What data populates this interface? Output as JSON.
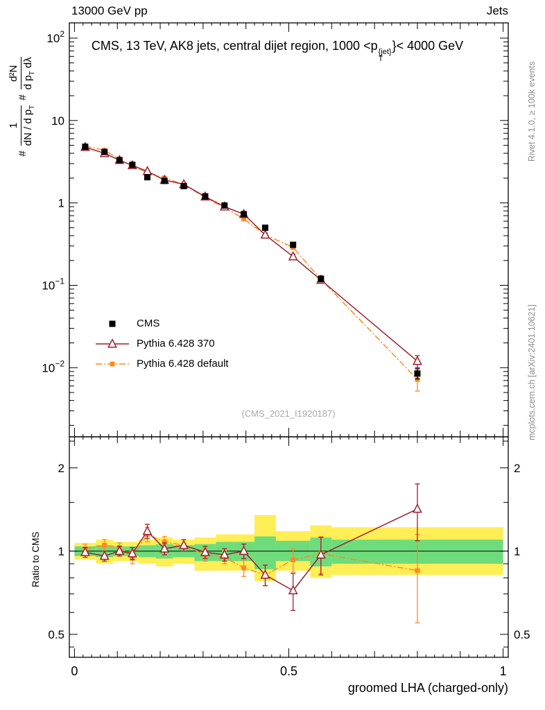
{
  "header": {
    "left": "13000 GeV pp",
    "right": "Jets"
  },
  "title": {
    "prefix": "CMS, 13 TeV, AK8 jets, central dijet region, 1000 <p",
    "sup": "{jet}",
    "sub": "T",
    "suffix": "}< 4000 GeV"
  },
  "labels": {
    "ylabel": {
      "hash1": "#",
      "f1num": "1",
      "f1den_a": "dN / d p",
      "f1den_sub": "T",
      "hash2": "#",
      "f2num": "d²N",
      "f2den_a": "d p",
      "f2den_sub": "T",
      "f2den_b": " dλ"
    }
  },
  "legend": {
    "items": [
      {
        "label": "CMS"
      },
      {
        "label": "Pythia 6.428 370"
      },
      {
        "label": "Pythia 6.428 default"
      }
    ]
  },
  "watermark": "(CMS_2021_I1920187)",
  "side": {
    "rivet": "Rivet 4.1.0, ≥ 100k events",
    "mcplots": "mcplots.cern.ch [arXiv:2401.10621]"
  },
  "chart_data": {
    "type": "line",
    "title": "CMS, 13 TeV, AK8 jets, central dijet region, 1000 < pT{jet} < 4000 GeV",
    "x_label": "groomed LHA (charged-only)",
    "ylabel": "# 1/(dN/dpT) # d²N/(dpT dλ)",
    "x": [
      0.025,
      0.07,
      0.105,
      0.135,
      0.17,
      0.21,
      0.255,
      0.305,
      0.35,
      0.395,
      0.445,
      0.51,
      0.575,
      0.8
    ],
    "bin_edges": [
      0.0,
      0.05,
      0.09,
      0.12,
      0.15,
      0.19,
      0.23,
      0.28,
      0.33,
      0.37,
      0.42,
      0.47,
      0.55,
      0.6,
      1.0
    ],
    "series": [
      {
        "name": "CMS",
        "color": "#000000",
        "marker": "square",
        "marker_size": 9,
        "line": "none",
        "y": [
          4.8,
          4.15,
          3.3,
          2.9,
          2.05,
          1.85,
          1.6,
          1.2,
          0.93,
          0.73,
          0.5,
          0.31,
          0.12,
          0.0085
        ],
        "yerr": [
          0.25,
          0.2,
          0.15,
          0.12,
          0.1,
          0.08,
          0.07,
          0.05,
          0.04,
          0.035,
          0.03,
          0.02,
          0.01,
          0.0012
        ]
      },
      {
        "name": "Pythia 6.428 370",
        "color": "#9d1f2d",
        "marker": "triangle-open",
        "marker_size": 11,
        "line": "solid",
        "y": [
          4.75,
          4.0,
          3.3,
          2.85,
          2.42,
          1.89,
          1.68,
          1.19,
          0.9,
          0.73,
          0.41,
          0.223,
          0.116,
          0.012
        ],
        "yerr": [
          0.12,
          0.1,
          0.09,
          0.08,
          0.08,
          0.06,
          0.05,
          0.04,
          0.035,
          0.03,
          0.02,
          0.015,
          0.01,
          0.002
        ],
        "ratio": [
          0.99,
          0.96,
          1.0,
          0.98,
          1.18,
          1.02,
          1.05,
          0.99,
          0.97,
          1.0,
          0.82,
          0.72,
          0.97,
          1.42
        ],
        "ratio_err": [
          0.04,
          0.04,
          0.04,
          0.05,
          0.07,
          0.05,
          0.05,
          0.05,
          0.05,
          0.06,
          0.07,
          0.11,
          0.15,
          0.33
        ]
      },
      {
        "name": "Pythia 6.428 default",
        "color": "#ff8a20",
        "marker": "square",
        "marker_size": 7,
        "line": "dashdot",
        "y": [
          4.9,
          4.35,
          3.4,
          2.76,
          2.36,
          2.0,
          1.68,
          1.16,
          0.88,
          0.64,
          0.41,
          0.288,
          0.118,
          0.0072
        ],
        "yerr": [
          0.12,
          0.1,
          0.09,
          0.08,
          0.08,
          0.06,
          0.05,
          0.04,
          0.035,
          0.03,
          0.02,
          0.015,
          0.01,
          0.002
        ],
        "ratio": [
          1.02,
          1.05,
          1.03,
          0.95,
          1.15,
          1.08,
          1.05,
          0.97,
          0.95,
          0.87,
          0.82,
          0.93,
          0.98,
          0.85
        ],
        "ratio_err": [
          0.04,
          0.05,
          0.04,
          0.05,
          0.07,
          0.05,
          0.05,
          0.05,
          0.05,
          0.06,
          0.07,
          0.09,
          0.15,
          0.3
        ]
      }
    ],
    "bands": {
      "colors": {
        "yellow": "#ffee55",
        "green": "#6fdc7c"
      },
      "yellow": [
        [
          0.93,
          1.07
        ],
        [
          0.9,
          1.1
        ],
        [
          0.92,
          1.08
        ],
        [
          0.92,
          1.08
        ],
        [
          0.9,
          1.1
        ],
        [
          0.88,
          1.12
        ],
        [
          0.9,
          1.1
        ],
        [
          0.85,
          1.12
        ],
        [
          0.85,
          1.15
        ],
        [
          0.85,
          1.15
        ],
        [
          0.78,
          1.35
        ],
        [
          0.85,
          1.18
        ],
        [
          0.8,
          1.24
        ],
        [
          0.82,
          1.22
        ]
      ],
      "green": [
        [
          0.96,
          1.04
        ],
        [
          0.95,
          1.05
        ],
        [
          0.96,
          1.04
        ],
        [
          0.96,
          1.04
        ],
        [
          0.95,
          1.05
        ],
        [
          0.94,
          1.06
        ],
        [
          0.95,
          1.05
        ],
        [
          0.92,
          1.06
        ],
        [
          0.92,
          1.08
        ],
        [
          0.92,
          1.08
        ],
        [
          0.86,
          1.13
        ],
        [
          0.92,
          1.09
        ],
        [
          0.88,
          1.12
        ],
        [
          0.9,
          1.1
        ]
      ]
    },
    "axes": {
      "xlim": [
        -0.012,
        1.012
      ],
      "main_ylim": [
        0.00145,
        153
      ],
      "ratio_ylim": [
        0.413,
        2.59
      ],
      "x_ticks": [
        {
          "v": 0,
          "label": "0"
        },
        {
          "v": 0.5,
          "label": "0.5"
        },
        {
          "v": 1,
          "label": "1"
        }
      ],
      "main_y_ticks": [
        {
          "v": 100,
          "base": "10",
          "exp": "2"
        },
        {
          "v": 10,
          "base": "10",
          "exp": ""
        },
        {
          "v": 1,
          "base": "1",
          "exp": ""
        },
        {
          "v": 0.1,
          "base": "10",
          "exp": "−1"
        },
        {
          "v": 0.01,
          "base": "10",
          "exp": "−2"
        }
      ],
      "ratio_y_ticks": [
        {
          "v": 2,
          "label": "2"
        },
        {
          "v": 1,
          "label": "1"
        },
        {
          "v": 0.5,
          "label": "0.5"
        }
      ],
      "ratio_minor_ticks": [
        0.45,
        0.6,
        0.7,
        0.8,
        0.9,
        1.5,
        2.5
      ],
      "ratio_label": "Ratio to CMS"
    }
  }
}
